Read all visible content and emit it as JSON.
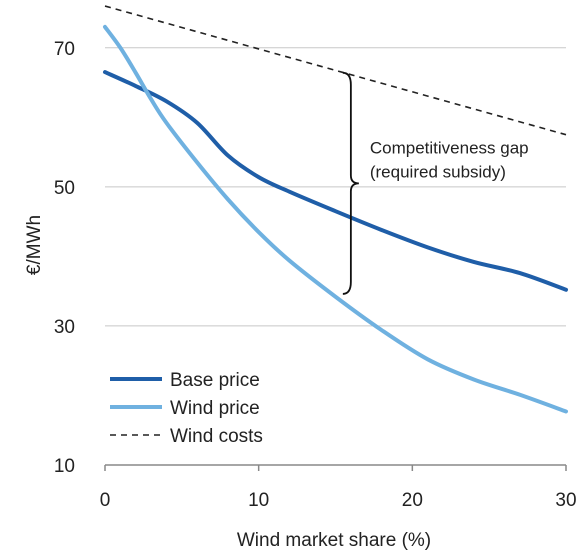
{
  "chart_data": {
    "type": "line",
    "title": "",
    "xlabel": "Wind market share (%)",
    "ylabel": "€/MWh",
    "xlim": [
      0,
      30
    ],
    "ylim": [
      10,
      75
    ],
    "xticks": [
      0,
      10,
      20,
      30
    ],
    "yticks": [
      10,
      30,
      50,
      70
    ],
    "grid": "horizontal",
    "legend_position": "bottom-left",
    "series": [
      {
        "name": "Base price",
        "color": "#1f5ea8",
        "style": "solid",
        "x": [
          0,
          2,
          4,
          6,
          8,
          10,
          12,
          15,
          18,
          21,
          24,
          27,
          30
        ],
        "y": [
          66.5,
          64.5,
          62.3,
          59.2,
          54.5,
          51.4,
          49.3,
          46.5,
          43.8,
          41.3,
          39.2,
          37.6,
          35.2
        ]
      },
      {
        "name": "Wind price",
        "color": "#6fb1e0",
        "style": "solid",
        "x": [
          0,
          1,
          2,
          3,
          4,
          6,
          8,
          10,
          12,
          15,
          18,
          21,
          24,
          27,
          30
        ],
        "y": [
          73,
          70,
          66.4,
          62.6,
          59.2,
          53.5,
          48.2,
          43.5,
          39.4,
          34.2,
          29.4,
          25.2,
          22.3,
          20.1,
          17.7
        ]
      },
      {
        "name": "Wind costs",
        "color": "#222222",
        "style": "dashed",
        "x": [
          0,
          30
        ],
        "y": [
          76,
          57.5
        ]
      }
    ],
    "annotations": [
      {
        "text_lines": [
          "Competitiveness gap",
          "(required subsidy)"
        ],
        "bracket": {
          "x": 16,
          "y_top": 66.4,
          "y_bottom": 34.6
        }
      }
    ]
  }
}
